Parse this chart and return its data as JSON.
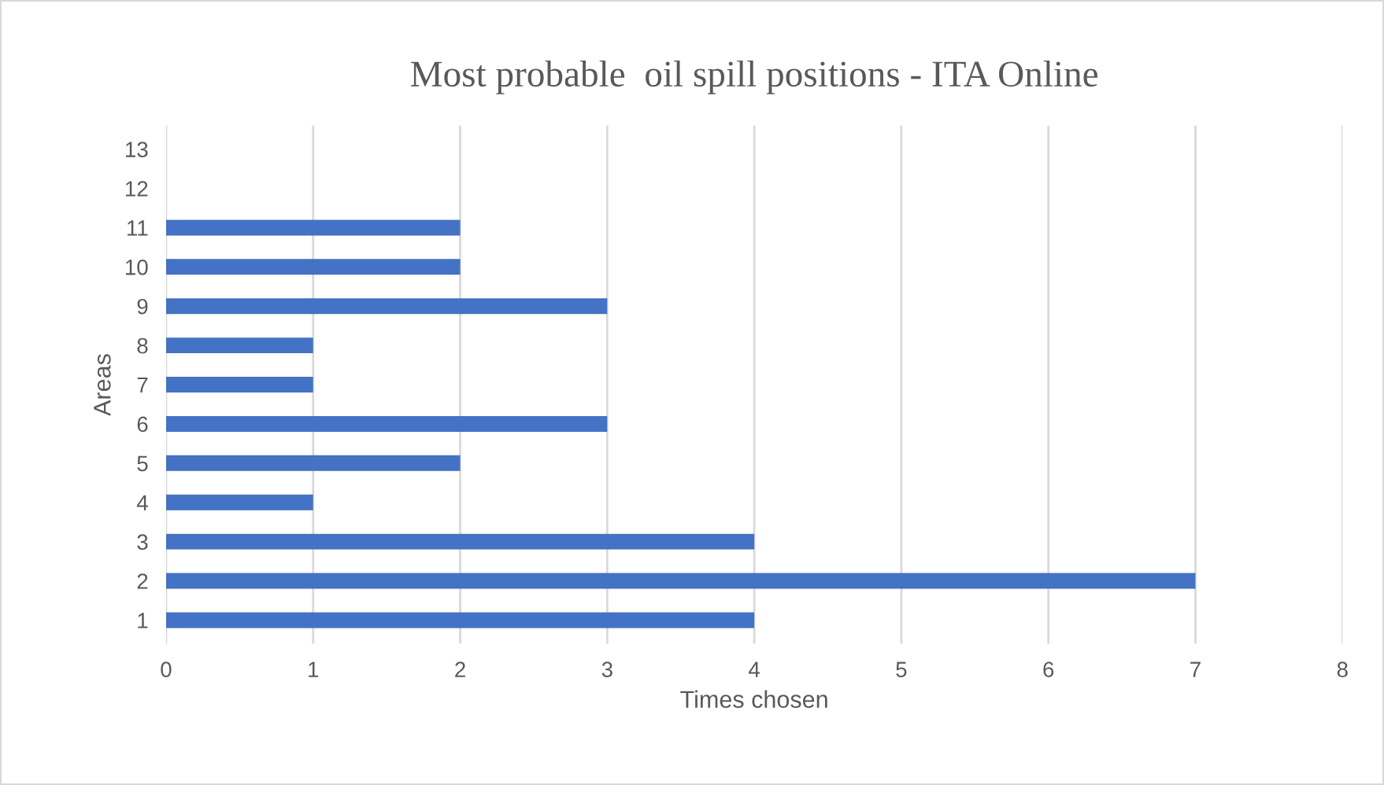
{
  "chart_data": {
    "type": "bar",
    "orientation": "horizontal",
    "title": "Most probable  oil spill positions - ITA Online",
    "xlabel": "Times chosen",
    "ylabel": "Areas",
    "categories": [
      "13",
      "12",
      "11",
      "10",
      "9",
      "8",
      "7",
      "6",
      "5",
      "4",
      "3",
      "2",
      "1"
    ],
    "values": [
      null,
      null,
      2,
      2,
      3,
      1,
      1,
      3,
      2,
      1,
      4,
      7,
      4
    ],
    "color": "#4472c4",
    "xlim": [
      0,
      8
    ],
    "xticks": [
      0,
      1,
      2,
      3,
      4,
      5,
      6,
      7,
      8
    ],
    "grid": "x"
  }
}
